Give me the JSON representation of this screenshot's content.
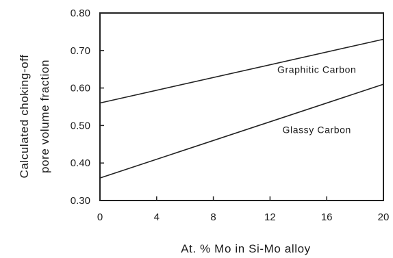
{
  "chart_data": {
    "type": "line",
    "xlabel": "At. % Mo in Si-Mo alloy",
    "ylabel": [
      "Calculated choking-off",
      "pore volume fraction"
    ],
    "xlim": [
      0,
      20
    ],
    "ylim": [
      0.3,
      0.8
    ],
    "x_ticks": [
      "0",
      "4",
      "8",
      "12",
      "16",
      "20"
    ],
    "y_ticks": [
      "0.80",
      "0.70",
      "0.60",
      "0.50",
      "0.40",
      "0.30"
    ],
    "grid": false,
    "series": [
      {
        "name": "Graphitic Carbon",
        "x": [
          0,
          20
        ],
        "y": [
          0.56,
          0.73
        ]
      },
      {
        "name": "Glassy Carbon",
        "x": [
          0,
          20
        ],
        "y": [
          0.36,
          0.61
        ]
      }
    ],
    "annotations": [
      {
        "text": "Graphitic Carbon",
        "x": 15.3,
        "y": 0.64
      },
      {
        "text": "Glassy Carbon",
        "x": 15.3,
        "y": 0.48
      }
    ],
    "colors": {
      "line": "#222222",
      "frame": "#222222"
    }
  }
}
